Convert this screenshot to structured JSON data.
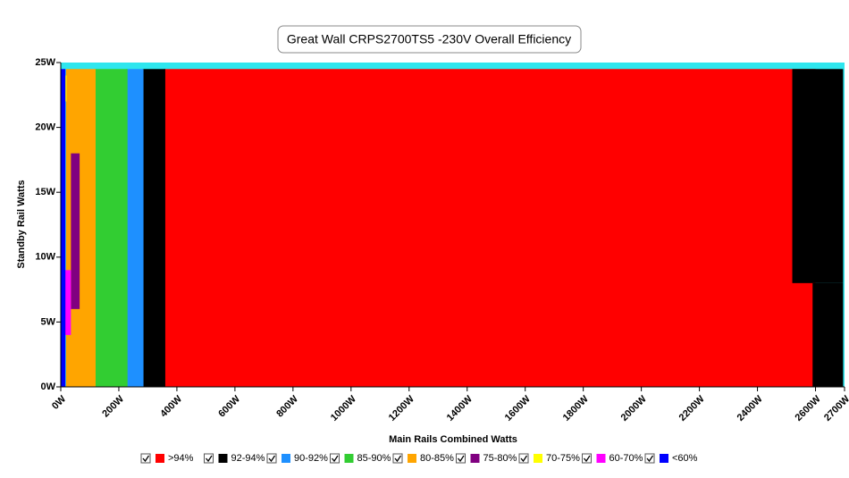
{
  "chart_data": {
    "type": "region-map",
    "title": "Great Wall  CRPS2700TS5 -230V Overall Efficiency",
    "x_label": "Main Rails Combined Watts",
    "y_label": "Standby Rail Watts",
    "plot_background": "#2ee6ee",
    "xlim": [
      0,
      2700
    ],
    "ylim": [
      0,
      25
    ],
    "xticks": [
      {
        "value": 0,
        "label": "0W"
      },
      {
        "value": 200,
        "label": "200W"
      },
      {
        "value": 400,
        "label": "400W"
      },
      {
        "value": 600,
        "label": "600W"
      },
      {
        "value": 800,
        "label": "800W"
      },
      {
        "value": 1000,
        "label": "1000W"
      },
      {
        "value": 1200,
        "label": "1200W"
      },
      {
        "value": 1400,
        "label": "1400W"
      },
      {
        "value": 1600,
        "label": "1600W"
      },
      {
        "value": 1800,
        "label": "1800W"
      },
      {
        "value": 2000,
        "label": "2000W"
      },
      {
        "value": 2200,
        "label": "2200W"
      },
      {
        "value": 2400,
        "label": "2400W"
      },
      {
        "value": 2600,
        "label": "2600W"
      },
      {
        "value": 2700,
        "label": "2700W"
      }
    ],
    "yticks": [
      {
        "value": 0,
        "label": "0W"
      },
      {
        "value": 5,
        "label": "5W"
      },
      {
        "value": 10,
        "label": "10W"
      },
      {
        "value": 15,
        "label": "15W"
      },
      {
        "value": 20,
        "label": "20W"
      },
      {
        "value": 25,
        "label": "25W"
      }
    ],
    "series": [
      {
        "name": ">94%",
        "color": "#ff0000",
        "rects": [
          [
            355,
            2600,
            0,
            24.5
          ]
        ]
      },
      {
        "name": "92-94%",
        "color": "#000000",
        "rects": [
          [
            282,
            360,
            0,
            24.5
          ],
          [
            2590,
            2695,
            0,
            8
          ],
          [
            2520,
            2695,
            8,
            24.5
          ]
        ]
      },
      {
        "name": "90-92%",
        "color": "#1e90ff",
        "rects": [
          [
            225,
            285,
            0,
            24.5
          ]
        ]
      },
      {
        "name": "85-90%",
        "color": "#32cd32",
        "rects": [
          [
            115,
            230,
            0,
            24.5
          ]
        ]
      },
      {
        "name": "80-85%",
        "color": "#ffa500",
        "rects": [
          [
            18,
            120,
            0,
            24.5
          ]
        ]
      },
      {
        "name": "75-80%",
        "color": "#800080",
        "rects": [
          [
            35,
            65,
            6,
            18
          ]
        ]
      },
      {
        "name": "70-75%",
        "color": "#ffff00",
        "rects": [
          [
            5,
            20,
            22,
            24
          ]
        ]
      },
      {
        "name": "60-70%",
        "color": "#ff00ff",
        "rects": [
          [
            10,
            35,
            4,
            9
          ]
        ]
      },
      {
        "name": "<60%",
        "color": "#0000ff",
        "rects": [
          [
            0,
            16,
            0,
            24.5
          ]
        ]
      }
    ]
  }
}
